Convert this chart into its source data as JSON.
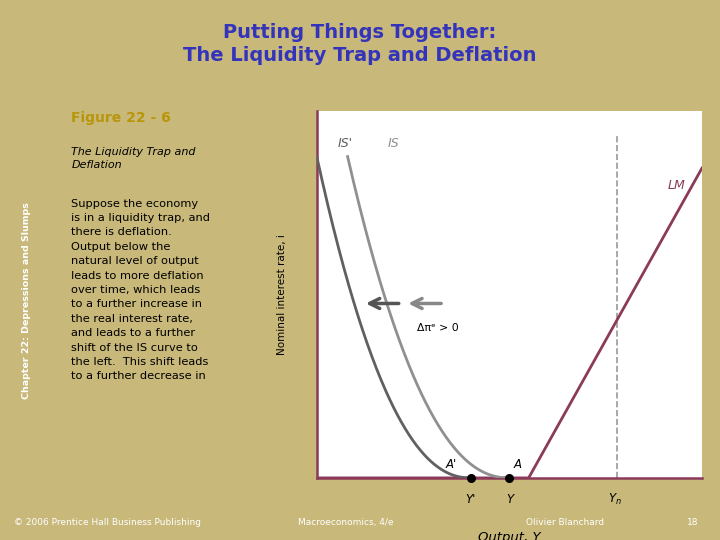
{
  "bg_outer": "#c8b87a",
  "bg_slide": "#f0ebe0",
  "bg_graph": "#ffffff",
  "title_text": "Putting Things Together:\nThe Liquidity Trap and Deflation",
  "title_color": "#3333bb",
  "chapter_text": "Chapter 22: Depressions and Slumps",
  "figure_label": "Figure 22 - 6",
  "figure_label_color": "#b8960a",
  "subtitle_italic": "The Liquidity Trap and\nDeflation",
  "body_text": "Suppose the economy\nis in a liquidity trap, and\nthere is deflation.\nOutput below the\nnatural level of output\nleads to more deflation\nover time, which leads\nto a further increase in\nthe real interest rate,\nand leads to a further\nshift of the IS curve to\nthe left.  This shift leads\nto a further decrease in",
  "footer_left": "© 2006 Prentice Hall Business Publishing",
  "footer_mid": "Macroeconomics, 4/e",
  "footer_right": "Olivier Blanchard",
  "footer_num": "18",
  "footer_bg": "#3a3a8c",
  "IS_color": "#909090",
  "IS_prime_color": "#606060",
  "LM_color": "#8b3a5a",
  "arrow_color": "#606060",
  "dashed_color": "#999999",
  "point_color": "#000000",
  "ylabel": "Nominal interest rate, i",
  "xlabel": "Output, Y",
  "IS_label": "IS",
  "IS_prime_label": "IS'",
  "LM_label": "LM",
  "A_label": "A",
  "Aprime_label": "A'",
  "Y_label": "Y",
  "Yprime_label": "Y'",
  "Yn_label": "Y_n",
  "delta_label": "Δπᵉ > 0"
}
